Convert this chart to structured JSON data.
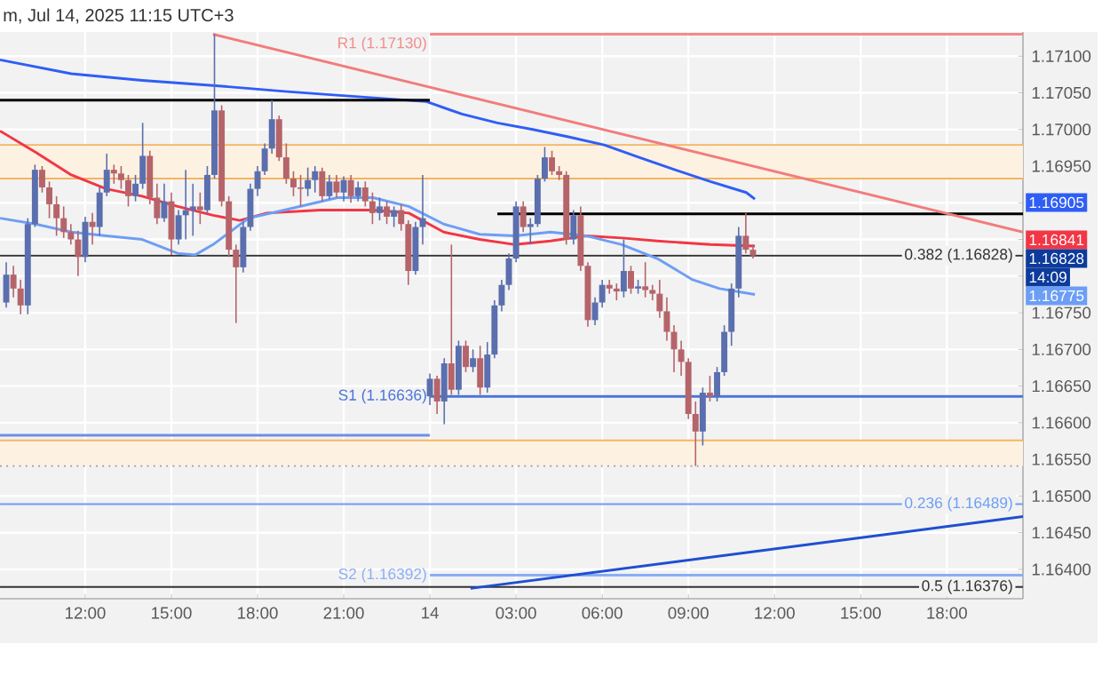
{
  "chart_data": {
    "type": "candlestick",
    "title": "m, Jul 14, 2025 11:15 UTC+3",
    "xlim": [
      "2025-07-13T09:02",
      "2025-07-14T20:39"
    ],
    "ylim": [
      1.1636,
      1.17133
    ],
    "xticks": [
      {
        "value": "2025-07-13T12:00",
        "label": "12:00"
      },
      {
        "value": "2025-07-13T15:00",
        "label": "15:00"
      },
      {
        "value": "2025-07-13T18:00",
        "label": "18:00"
      },
      {
        "value": "2025-07-13T21:00",
        "label": "21:00"
      },
      {
        "value": "2025-07-14T00:00",
        "label": "14"
      },
      {
        "value": "2025-07-14T03:00",
        "label": "03:00"
      },
      {
        "value": "2025-07-14T06:00",
        "label": "06:00"
      },
      {
        "value": "2025-07-14T09:00",
        "label": "09:00"
      },
      {
        "value": "2025-07-14T12:00",
        "label": "12:00"
      },
      {
        "value": "2025-07-14T15:00",
        "label": "15:00"
      },
      {
        "value": "2025-07-14T18:00",
        "label": "18:00"
      }
    ],
    "yticks": [
      {
        "value": 1.164,
        "label": "1.16400"
      },
      {
        "value": 1.1645,
        "label": "1.16450"
      },
      {
        "value": 1.165,
        "label": "1.16500"
      },
      {
        "value": 1.1655,
        "label": "1.16550"
      },
      {
        "value": 1.166,
        "label": "1.16600"
      },
      {
        "value": 1.1665,
        "label": "1.16650"
      },
      {
        "value": 1.167,
        "label": "1.16700"
      },
      {
        "value": 1.1675,
        "label": "1.16750"
      },
      {
        "value": 1.168,
        "label": null
      },
      {
        "value": 1.1685,
        "label": null
      },
      {
        "value": 1.169,
        "label": null
      },
      {
        "value": 1.1695,
        "label": "1.16950"
      },
      {
        "value": 1.17,
        "label": "1.17000"
      },
      {
        "value": 1.1705,
        "label": "1.17050"
      },
      {
        "value": 1.171,
        "label": "1.17100"
      }
    ],
    "grid": true,
    "x": [
      "2025-07-13T09:15",
      "2025-07-13T09:30",
      "2025-07-13T09:45",
      "2025-07-13T10:00",
      "2025-07-13T10:15",
      "2025-07-13T10:30",
      "2025-07-13T10:45",
      "2025-07-13T11:00",
      "2025-07-13T11:15",
      "2025-07-13T11:30",
      "2025-07-13T11:45",
      "2025-07-13T12:00",
      "2025-07-13T12:15",
      "2025-07-13T12:30",
      "2025-07-13T12:45",
      "2025-07-13T13:00",
      "2025-07-13T13:15",
      "2025-07-13T13:30",
      "2025-07-13T13:45",
      "2025-07-13T14:00",
      "2025-07-13T14:15",
      "2025-07-13T14:30",
      "2025-07-13T14:45",
      "2025-07-13T15:00",
      "2025-07-13T15:15",
      "2025-07-13T15:30",
      "2025-07-13T15:45",
      "2025-07-13T16:00",
      "2025-07-13T16:15",
      "2025-07-13T16:30",
      "2025-07-13T16:45",
      "2025-07-13T17:00",
      "2025-07-13T17:15",
      "2025-07-13T17:30",
      "2025-07-13T17:45",
      "2025-07-13T18:00",
      "2025-07-13T18:15",
      "2025-07-13T18:30",
      "2025-07-13T18:45",
      "2025-07-13T19:00",
      "2025-07-13T19:15",
      "2025-07-13T19:30",
      "2025-07-13T19:45",
      "2025-07-13T20:00",
      "2025-07-13T20:15",
      "2025-07-13T20:30",
      "2025-07-13T20:45",
      "2025-07-13T21:00",
      "2025-07-13T21:15",
      "2025-07-13T21:30",
      "2025-07-13T21:45",
      "2025-07-13T22:00",
      "2025-07-13T22:15",
      "2025-07-13T22:30",
      "2025-07-13T22:45",
      "2025-07-13T23:00",
      "2025-07-13T23:15",
      "2025-07-13T23:30",
      "2025-07-13T23:45",
      "2025-07-14T00:00",
      "2025-07-14T00:15",
      "2025-07-14T00:30",
      "2025-07-14T00:45",
      "2025-07-14T01:00",
      "2025-07-14T01:15",
      "2025-07-14T01:30",
      "2025-07-14T01:45",
      "2025-07-14T02:00",
      "2025-07-14T02:15",
      "2025-07-14T02:30",
      "2025-07-14T02:45",
      "2025-07-14T03:00",
      "2025-07-14T03:15",
      "2025-07-14T03:30",
      "2025-07-14T03:45",
      "2025-07-14T04:00",
      "2025-07-14T04:15",
      "2025-07-14T04:30",
      "2025-07-14T04:45",
      "2025-07-14T05:00",
      "2025-07-14T05:15",
      "2025-07-14T05:30",
      "2025-07-14T05:45",
      "2025-07-14T06:00",
      "2025-07-14T06:15",
      "2025-07-14T06:30",
      "2025-07-14T06:45",
      "2025-07-14T07:00",
      "2025-07-14T07:15",
      "2025-07-14T07:30",
      "2025-07-14T07:45",
      "2025-07-14T08:00",
      "2025-07-14T08:15",
      "2025-07-14T08:30",
      "2025-07-14T08:45",
      "2025-07-14T09:00",
      "2025-07-14T09:15",
      "2025-07-14T09:30",
      "2025-07-14T09:45",
      "2025-07-14T10:00",
      "2025-07-14T10:15",
      "2025-07-14T10:30",
      "2025-07-14T10:45",
      "2025-07-14T11:00",
      "2025-07-14T11:15"
    ],
    "ohlc": [
      [
        1.16764,
        1.16819,
        1.16757,
        1.16802
      ],
      [
        1.16802,
        1.16814,
        1.16771,
        1.16783
      ],
      [
        1.16783,
        1.16795,
        1.16748,
        1.1676
      ],
      [
        1.1676,
        1.16879,
        1.16748,
        1.16871
      ],
      [
        1.16871,
        1.16952,
        1.16867,
        1.16945
      ],
      [
        1.16945,
        1.1695,
        1.16914,
        1.16921
      ],
      [
        1.16921,
        1.16929,
        1.16879,
        1.16898
      ],
      [
        1.16898,
        1.16909,
        1.16855,
        1.16879
      ],
      [
        1.16879,
        1.16895,
        1.16852,
        1.1686
      ],
      [
        1.1686,
        1.16871,
        1.16843,
        1.1685
      ],
      [
        1.1685,
        1.16862,
        1.168,
        1.16826
      ],
      [
        1.16826,
        1.16881,
        1.16819,
        1.16874
      ],
      [
        1.16874,
        1.16886,
        1.16843,
        1.16867
      ],
      [
        1.16867,
        1.16921,
        1.16855,
        1.16914
      ],
      [
        1.16914,
        1.16967,
        1.16909,
        1.16945
      ],
      [
        1.16945,
        1.16952,
        1.16926,
        1.1694
      ],
      [
        1.1694,
        1.1695,
        1.16919,
        1.16931
      ],
      [
        1.16931,
        1.16938,
        1.16895,
        1.16909
      ],
      [
        1.16909,
        1.16938,
        1.16902,
        1.16926
      ],
      [
        1.16926,
        1.17009,
        1.16919,
        1.16964
      ],
      [
        1.16964,
        1.16971,
        1.16898,
        1.16907
      ],
      [
        1.16907,
        1.16926,
        1.16871,
        1.16879
      ],
      [
        1.16879,
        1.16926,
        1.16874,
        1.16902
      ],
      [
        1.16902,
        1.16914,
        1.16829,
        1.1685
      ],
      [
        1.1685,
        1.1689,
        1.16843,
        1.16883
      ],
      [
        1.16883,
        1.16945,
        1.1685,
        1.1689
      ],
      [
        1.1689,
        1.16926,
        1.16855,
        1.16895
      ],
      [
        1.16895,
        1.16914,
        1.16871,
        1.1689
      ],
      [
        1.1689,
        1.1695,
        1.16886,
        1.16938
      ],
      [
        1.16938,
        1.1713,
        1.16933,
        1.17026
      ],
      [
        1.17026,
        1.17033,
        1.16895,
        1.16902
      ],
      [
        1.16902,
        1.16909,
        1.16826,
        1.16836
      ],
      [
        1.16836,
        1.16843,
        1.16736,
        1.16812
      ],
      [
        1.16812,
        1.16874,
        1.16805,
        1.16867
      ],
      [
        1.16867,
        1.16926,
        1.16862,
        1.16919
      ],
      [
        1.16919,
        1.1695,
        1.16909,
        1.16943
      ],
      [
        1.16943,
        1.16981,
        1.16938,
        1.16974
      ],
      [
        1.16974,
        1.1704,
        1.16967,
        1.17014
      ],
      [
        1.17014,
        1.17019,
        1.16957,
        1.16962
      ],
      [
        1.16962,
        1.16981,
        1.16926,
        1.16933
      ],
      [
        1.16933,
        1.16943,
        1.16909,
        1.16921
      ],
      [
        1.16921,
        1.16938,
        1.16895,
        1.16919
      ],
      [
        1.16919,
        1.16948,
        1.16909,
        1.16931
      ],
      [
        1.16931,
        1.1695,
        1.16914,
        1.16943
      ],
      [
        1.16943,
        1.16948,
        1.16902,
        1.16909
      ],
      [
        1.16909,
        1.16938,
        1.16905,
        1.16929
      ],
      [
        1.16929,
        1.16938,
        1.16907,
        1.16914
      ],
      [
        1.16914,
        1.16936,
        1.16902,
        1.16931
      ],
      [
        1.16931,
        1.16938,
        1.169,
        1.16909
      ],
      [
        1.16909,
        1.16929,
        1.16902,
        1.16921
      ],
      [
        1.16921,
        1.16929,
        1.16895,
        1.16902
      ],
      [
        1.16902,
        1.16914,
        1.16871,
        1.16886
      ],
      [
        1.16886,
        1.16907,
        1.16876,
        1.16895
      ],
      [
        1.16895,
        1.16902,
        1.16871,
        1.16881
      ],
      [
        1.16881,
        1.16895,
        1.16867,
        1.1689
      ],
      [
        1.1689,
        1.16898,
        1.16862,
        1.16871
      ],
      [
        1.16871,
        1.16876,
        1.16788,
        1.16807
      ],
      [
        1.16807,
        1.16874,
        1.16802,
        1.16867
      ],
      [
        1.16867,
        1.16938,
        1.16843,
        1.16879
      ],
      [
        1.16636,
        1.16667,
        1.16624,
        1.1666
      ],
      [
        1.1666,
        1.16664,
        1.16612,
        1.16629
      ],
      [
        1.16629,
        1.16688,
        1.16598,
        1.16681
      ],
      [
        1.16681,
        1.16843,
        1.16638,
        1.16645
      ],
      [
        1.16645,
        1.16712,
        1.16638,
        1.16705
      ],
      [
        1.16705,
        1.16712,
        1.16669,
        1.16676
      ],
      [
        1.16676,
        1.167,
        1.16669,
        1.16688
      ],
      [
        1.16688,
        1.16705,
        1.16638,
        1.16648
      ],
      [
        1.16648,
        1.1671,
        1.16641,
        1.16693
      ],
      [
        1.16693,
        1.16767,
        1.16688,
        1.1676
      ],
      [
        1.1676,
        1.16795,
        1.16752,
        1.16788
      ],
      [
        1.16788,
        1.16831,
        1.16781,
        1.16824
      ],
      [
        1.16824,
        1.16902,
        1.16819,
        1.16895
      ],
      [
        1.16895,
        1.16902,
        1.1686,
        1.16867
      ],
      [
        1.16867,
        1.16879,
        1.16843,
        1.16871
      ],
      [
        1.16871,
        1.16938,
        1.16867,
        1.16933
      ],
      [
        1.16933,
        1.16976,
        1.16929,
        1.16962
      ],
      [
        1.16962,
        1.16971,
        1.16938,
        1.16943
      ],
      [
        1.16943,
        1.1695,
        1.16931,
        1.16938
      ],
      [
        1.16938,
        1.16943,
        1.16843,
        1.1685
      ],
      [
        1.1685,
        1.1689,
        1.16843,
        1.16883
      ],
      [
        1.16883,
        1.16895,
        1.16807,
        1.16814
      ],
      [
        1.16814,
        1.16819,
        1.16731,
        1.1674
      ],
      [
        1.1674,
        1.16771,
        1.16733,
        1.16764
      ],
      [
        1.16764,
        1.16795,
        1.16757,
        1.16788
      ],
      [
        1.16788,
        1.16795,
        1.16776,
        1.16783
      ],
      [
        1.16783,
        1.1679,
        1.16767,
        1.16779
      ],
      [
        1.16779,
        1.1685,
        1.16771,
        1.16807
      ],
      [
        1.16807,
        1.16814,
        1.16776,
        1.16783
      ],
      [
        1.16783,
        1.16795,
        1.16776,
        1.16786
      ],
      [
        1.16786,
        1.16819,
        1.16771,
        1.16781
      ],
      [
        1.16781,
        1.16788,
        1.16767,
        1.16776
      ],
      [
        1.16776,
        1.16795,
        1.16743,
        1.16752
      ],
      [
        1.16752,
        1.16771,
        1.16712,
        1.16724
      ],
      [
        1.16724,
        1.16733,
        1.16669,
        1.167
      ],
      [
        1.167,
        1.16712,
        1.16664,
        1.16683
      ],
      [
        1.16683,
        1.16688,
        1.16605,
        1.16612
      ],
      [
        1.16612,
        1.16629,
        1.16541,
        1.16588
      ],
      [
        1.16588,
        1.16648,
        1.16569,
        1.16641
      ],
      [
        1.16641,
        1.16664,
        1.16629,
        1.16636
      ],
      [
        1.16636,
        1.16676,
        1.16629,
        1.16669
      ],
      [
        1.16669,
        1.16733,
        1.16664,
        1.16724
      ],
      [
        1.16724,
        1.1679,
        1.16705,
        1.16783
      ],
      [
        1.16783,
        1.16867,
        1.16771,
        1.16855
      ],
      [
        1.16855,
        1.16886,
        1.16831,
        1.16836
      ],
      [
        1.16836,
        1.16843,
        1.16824,
        1.16828
      ]
    ],
    "series": [
      {
        "type": "line",
        "color": "#2f5ef5",
        "x": [
          "2025-07-13T09:02",
          "2025-07-13T11:31",
          "2025-07-13T13:59",
          "2025-07-13T16:27",
          "2025-07-13T18:56",
          "2025-07-13T21:24",
          "2025-07-13T23:53",
          "2025-07-14T01:07",
          "2025-07-14T02:21",
          "2025-07-14T03:35",
          "2025-07-14T04:49",
          "2025-07-14T06:04",
          "2025-07-14T07:17",
          "2025-07-14T08:32",
          "2025-07-14T09:46",
          "2025-07-14T11:01",
          "2025-07-14T11:19"
        ],
        "values": [
          1.17095,
          1.17076,
          1.17067,
          1.1706,
          1.17052,
          1.17045,
          1.17038,
          1.17021,
          1.17009,
          1.17,
          1.1699,
          1.16979,
          1.16962,
          1.16945,
          1.16929,
          1.16914,
          1.16905
        ]
      },
      {
        "type": "line",
        "color": "#f23645",
        "x": [
          "2025-07-13T09:02",
          "2025-07-13T10:16",
          "2025-07-13T11:31",
          "2025-07-13T12:44",
          "2025-07-13T13:59",
          "2025-07-13T15:13",
          "2025-07-13T16:27",
          "2025-07-13T17:23",
          "2025-07-13T18:19",
          "2025-07-13T20:10",
          "2025-07-13T22:01",
          "2025-07-13T23:16",
          "2025-07-14T00:29",
          "2025-07-14T01:44",
          "2025-07-14T02:58",
          "2025-07-14T04:12",
          "2025-07-14T05:26",
          "2025-07-14T06:41",
          "2025-07-14T07:55",
          "2025-07-14T09:46",
          "2025-07-14T11:19"
        ],
        "values": [
          1.16998,
          1.16969,
          1.16938,
          1.16919,
          1.16909,
          1.16895,
          1.16883,
          1.16876,
          1.16886,
          1.1689,
          1.1689,
          1.16886,
          1.1686,
          1.1685,
          1.16843,
          1.16848,
          1.16855,
          1.16852,
          1.16848,
          1.16843,
          1.16841
        ]
      },
      {
        "type": "line",
        "color": "#6d9ef5",
        "x": [
          "2025-07-13T09:02",
          "2025-07-13T10:16",
          "2025-07-13T11:31",
          "2025-07-13T12:44",
          "2025-07-13T13:59",
          "2025-07-13T15:13",
          "2025-07-13T15:50",
          "2025-07-13T16:27",
          "2025-07-13T17:41",
          "2025-07-13T18:56",
          "2025-07-13T20:47",
          "2025-07-13T22:01",
          "2025-07-13T23:16",
          "2025-07-14T00:29",
          "2025-07-14T01:44",
          "2025-07-14T02:58",
          "2025-07-14T04:12",
          "2025-07-14T05:26",
          "2025-07-14T06:41",
          "2025-07-14T07:55",
          "2025-07-14T09:09",
          "2025-07-14T10:05",
          "2025-07-14T11:19"
        ],
        "values": [
          1.16879,
          1.16871,
          1.1686,
          1.16855,
          1.1685,
          1.16831,
          1.16829,
          1.16843,
          1.16879,
          1.1689,
          1.16907,
          1.16907,
          1.16895,
          1.16871,
          1.16857,
          1.16855,
          1.1686,
          1.16855,
          1.16843,
          1.16824,
          1.16795,
          1.16783,
          1.16775
        ]
      },
      {
        "type": "line",
        "color": "#000000",
        "x": [
          "2025-07-13T09:02",
          "2025-07-14T00:00"
        ],
        "values": [
          1.1704,
          1.1704
        ]
      },
      {
        "type": "line",
        "color": "#000000",
        "x": [
          "2025-07-14T02:21",
          "2025-07-14T20:39"
        ],
        "values": [
          1.16885,
          1.16885
        ]
      },
      {
        "type": "line",
        "color": "#6d8fe8",
        "x": [
          "2025-07-13T09:02",
          "2025-07-14T00:00"
        ],
        "values": [
          1.16583,
          1.16583
        ]
      },
      {
        "type": "line",
        "name": "R1 (1.17130)",
        "color": "#f28b8b",
        "x": [
          "2025-07-14T00:00",
          "2025-07-14T20:39"
        ],
        "values": [
          1.1713,
          1.1713
        ]
      },
      {
        "type": "line",
        "name": "S1 (1.16636)",
        "color": "#4a74d9",
        "x": [
          "2025-07-14T00:00",
          "2025-07-14T20:39"
        ],
        "values": [
          1.16636,
          1.16636
        ]
      },
      {
        "type": "line",
        "name": "S2 (1.16392)",
        "color": "#8aaef5",
        "x": [
          "2025-07-14T00:00",
          "2025-07-14T20:39"
        ],
        "values": [
          1.16392,
          1.16392
        ]
      },
      {
        "type": "line",
        "color": "#f27c7c",
        "x": [
          "2025-07-13T16:27",
          "2025-07-14T20:39"
        ],
        "values": [
          1.1713,
          1.1686
        ]
      },
      {
        "type": "line",
        "color": "#1f4fd0",
        "x": [
          "2025-07-14T01:25",
          "2025-07-14T20:39"
        ],
        "values": [
          1.16374,
          1.16472
        ]
      }
    ],
    "bands": [
      {
        "axis": "y",
        "from": 1.16933,
        "to": 1.16979,
        "color": "#fdf1e2"
      },
      {
        "axis": "y",
        "from": 1.16541,
        "to": 1.16576,
        "color": "#fdf1e2"
      }
    ],
    "ref_lines": [
      {
        "axis": "y",
        "value": 1.16828,
        "label": "0.382 (1.16828)",
        "color": "#333333"
      },
      {
        "axis": "y",
        "value": 1.16489,
        "label": "0.236 (1.16489)",
        "color": "#6d9ef5"
      },
      {
        "axis": "y",
        "value": 1.16376,
        "label": "0.5 (1.16376)",
        "color": "#333333"
      },
      {
        "axis": "y",
        "value": 1.16541,
        "color": "#999999",
        "line_style": "dotted"
      },
      {
        "axis": "y",
        "value": 1.16979,
        "color": "#f5b461"
      },
      {
        "axis": "y",
        "value": 1.16933,
        "color": "#f5b461"
      },
      {
        "axis": "y",
        "value": 1.16576,
        "color": "#f5b461"
      }
    ],
    "annotations": [
      "1.16905",
      "1.16841",
      "1.16828",
      "14:09",
      "1.16775"
    ]
  }
}
